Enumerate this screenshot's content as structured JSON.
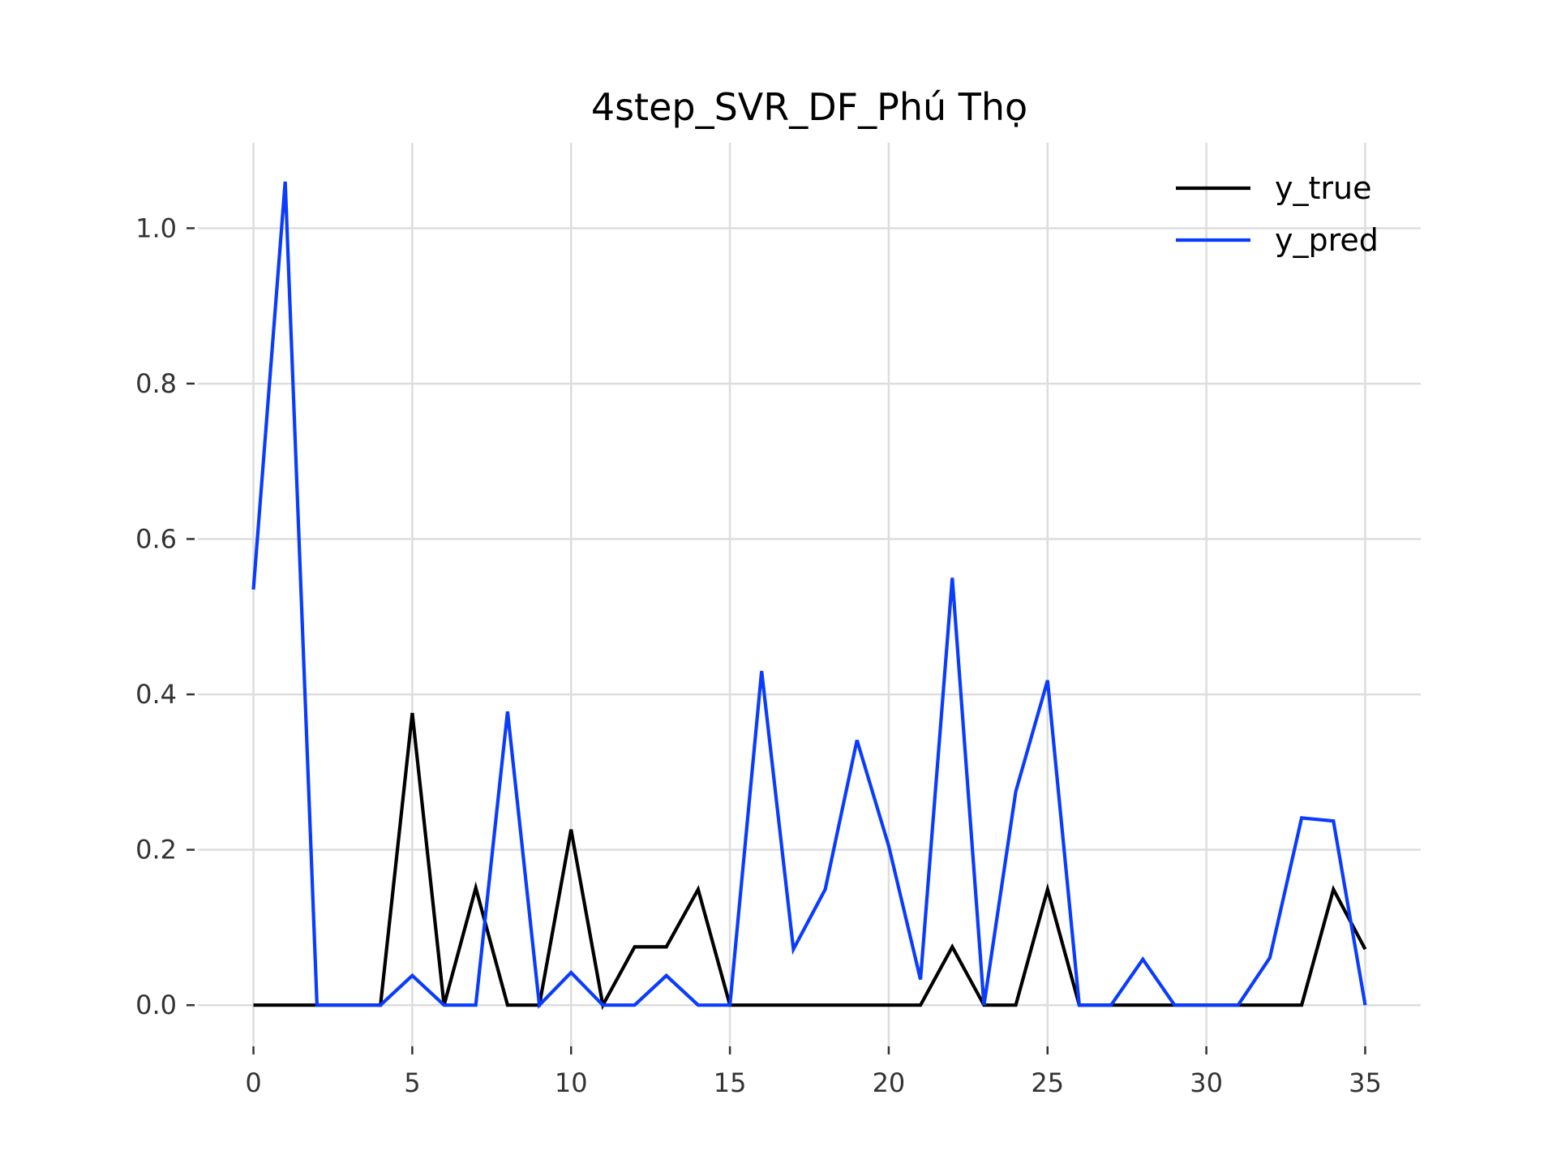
{
  "chart_data": {
    "type": "line",
    "title": "4step_SVR_DF_Phú Thọ",
    "xlabel": "",
    "ylabel": "",
    "xlim": [
      -1.75,
      36.75
    ],
    "ylim": [
      -0.053,
      1.11
    ],
    "xticks": [
      0,
      5,
      10,
      15,
      20,
      25,
      30,
      35
    ],
    "xtick_labels": [
      "0",
      "5",
      "10",
      "15",
      "20",
      "25",
      "30",
      "35"
    ],
    "yticks": [
      0.0,
      0.2,
      0.4,
      0.6,
      0.8,
      1.0
    ],
    "ytick_labels": [
      "0.0",
      "0.2",
      "0.4",
      "0.6",
      "0.8",
      "1.0"
    ],
    "grid": true,
    "legend_position": "top-right",
    "x": [
      0,
      1,
      2,
      3,
      4,
      5,
      6,
      7,
      8,
      9,
      10,
      11,
      12,
      13,
      14,
      15,
      16,
      17,
      18,
      19,
      20,
      21,
      22,
      23,
      24,
      25,
      26,
      27,
      28,
      29,
      30,
      31,
      32,
      33,
      34,
      35
    ],
    "series": [
      {
        "name": "y_true",
        "color": "#000000",
        "values": [
          0,
          0,
          0,
          0,
          0,
          0.376,
          0,
          0.151,
          0,
          0,
          0.226,
          0,
          0.075,
          0.075,
          0.149,
          0,
          0,
          0,
          0,
          0,
          0,
          0,
          0.075,
          0,
          0,
          0.149,
          0,
          0,
          0,
          0,
          0,
          0,
          0,
          0,
          0.149,
          0.072
        ]
      },
      {
        "name": "y_pred",
        "color": "#0a3cff",
        "values": [
          0.535,
          1.06,
          0,
          0,
          0,
          0.038,
          0,
          0,
          0.378,
          0,
          0.042,
          0,
          0,
          0.038,
          0,
          0,
          0.43,
          0.072,
          0.149,
          0.341,
          0.205,
          0.033,
          0.55,
          0,
          0.275,
          0.418,
          0,
          0,
          0.059,
          0,
          0,
          0,
          0.061,
          0.241,
          0.237,
          0
        ]
      }
    ]
  }
}
